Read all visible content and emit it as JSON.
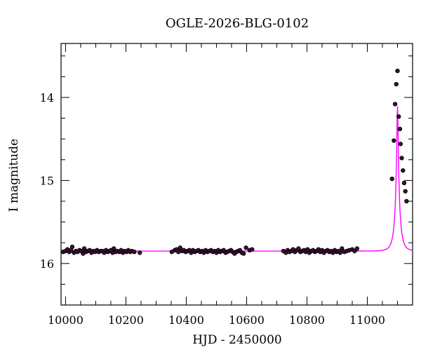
{
  "chart_data": {
    "type": "scatter",
    "title": "OGLE-2026-BLG-0102",
    "xlabel": "HJD - 2450000",
    "ylabel": "I magnitude",
    "xlim": [
      9985,
      11150
    ],
    "ylim": [
      16.5,
      13.35
    ],
    "y_inverted": true,
    "x_major_ticks": [
      10000,
      10200,
      10400,
      10600,
      10800,
      11000
    ],
    "x_minor_step": 50,
    "y_major_ticks": [
      14,
      15,
      16
    ],
    "y_minor_step": 0.25,
    "grid": false,
    "colors": {
      "points": "#000000",
      "point_face": "#3a1030",
      "model": "#ff00ff"
    },
    "series": [
      {
        "kind": "points",
        "x": [
          9992,
          10000,
          10006,
          10012,
          10018,
          10022,
          10028,
          10034,
          10040,
          10046,
          10052,
          10058,
          10062,
          10068,
          10074,
          10080,
          10086,
          10092,
          10098,
          10104,
          10110,
          10116,
          10122,
          10128,
          10134,
          10140,
          10146,
          10150,
          10156,
          10160,
          10166,
          10172,
          10178,
          10184,
          10190,
          10196,
          10202,
          10208,
          10214,
          10220,
          10228,
          10246,
          10352,
          10362,
          10368,
          10374,
          10380,
          10386,
          10392,
          10398,
          10404,
          10410,
          10416,
          10422,
          10428,
          10434,
          10440,
          10446,
          10452,
          10458,
          10464,
          10470,
          10476,
          10482,
          10488,
          10494,
          10500,
          10506,
          10512,
          10518,
          10524,
          10530,
          10536,
          10542,
          10548,
          10554,
          10560,
          10566,
          10572,
          10578,
          10584,
          10590,
          10598,
          10610,
          10618,
          10722,
          10730,
          10736,
          10742,
          10748,
          10754,
          10760,
          10766,
          10772,
          10778,
          10784,
          10790,
          10796,
          10802,
          10808,
          10814,
          10820,
          10826,
          10832,
          10838,
          10844,
          10850,
          10856,
          10862,
          10868,
          10874,
          10880,
          10886,
          10892,
          10898,
          10904,
          10910,
          10916,
          10924,
          10932,
          10940,
          10950,
          10958,
          10966,
          11082,
          11088,
          11092,
          11096,
          11100,
          11104,
          11108,
          11110,
          11114,
          11118,
          11122,
          11126,
          11130
        ],
        "y": [
          15.86,
          15.85,
          15.83,
          15.86,
          15.84,
          15.8,
          15.87,
          15.85,
          15.86,
          15.84,
          15.85,
          15.88,
          15.82,
          15.86,
          15.85,
          15.84,
          15.87,
          15.85,
          15.86,
          15.84,
          15.86,
          15.85,
          15.85,
          15.87,
          15.84,
          15.86,
          15.85,
          15.84,
          15.87,
          15.82,
          15.86,
          15.85,
          15.86,
          15.84,
          15.87,
          15.85,
          15.86,
          15.84,
          15.86,
          15.85,
          15.86,
          15.87,
          15.86,
          15.84,
          15.83,
          15.86,
          15.81,
          15.85,
          15.84,
          15.86,
          15.85,
          15.84,
          15.87,
          15.84,
          15.86,
          15.85,
          15.84,
          15.86,
          15.85,
          15.87,
          15.84,
          15.86,
          15.85,
          15.84,
          15.86,
          15.85,
          15.87,
          15.84,
          15.86,
          15.85,
          15.84,
          15.87,
          15.86,
          15.85,
          15.84,
          15.86,
          15.88,
          15.86,
          15.85,
          15.84,
          15.87,
          15.88,
          15.81,
          15.84,
          15.83,
          15.85,
          15.87,
          15.84,
          15.86,
          15.85,
          15.83,
          15.86,
          15.84,
          15.82,
          15.86,
          15.85,
          15.84,
          15.86,
          15.83,
          15.87,
          15.85,
          15.84,
          15.86,
          15.85,
          15.83,
          15.86,
          15.84,
          15.87,
          15.85,
          15.84,
          15.86,
          15.85,
          15.87,
          15.84,
          15.86,
          15.85,
          15.87,
          15.82,
          15.86,
          15.85,
          15.84,
          15.83,
          15.85,
          15.82,
          14.98,
          14.52,
          14.08,
          13.84,
          13.68,
          14.23,
          14.38,
          14.56,
          14.73,
          14.88,
          15.03,
          15.13,
          15.25
        ],
        "marker": "circle"
      },
      {
        "kind": "model_curve",
        "baseline": 15.85,
        "t0": 11100,
        "u0": 0.12,
        "tE": 16,
        "fs": 0.54
      }
    ]
  }
}
